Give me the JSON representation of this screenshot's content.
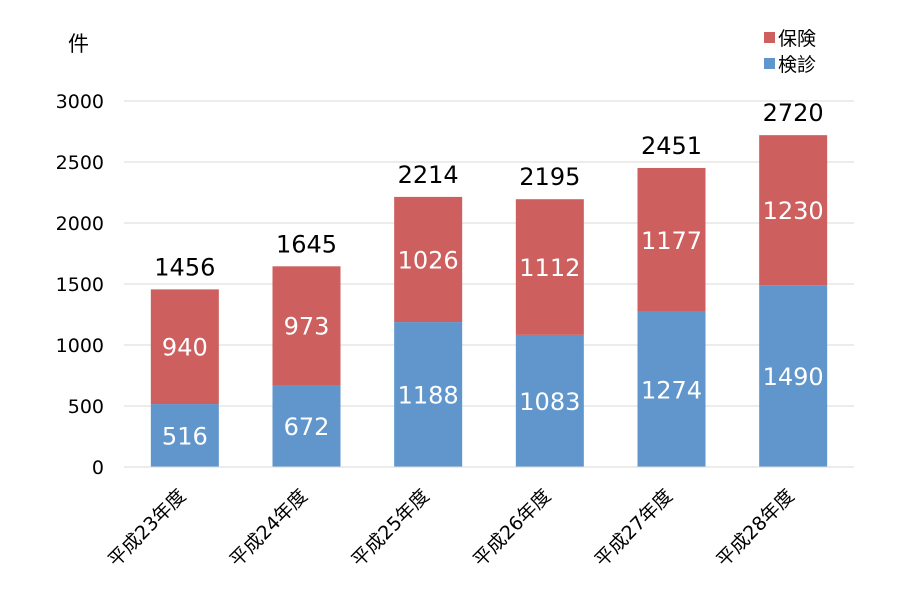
{
  "chart_data": {
    "type": "bar",
    "stacked": true,
    "unit_label": "件",
    "categories": [
      "平成23年度",
      "平成24年度",
      "平成25年度",
      "平成26年度",
      "平成27年度",
      "平成28年度"
    ],
    "series": [
      {
        "name": "検診",
        "color": "#6096cc",
        "values": [
          516,
          672,
          1188,
          1083,
          1274,
          1490
        ]
      },
      {
        "name": "保険",
        "color": "#cd5f5e",
        "values": [
          940,
          973,
          1026,
          1112,
          1177,
          1230
        ]
      }
    ],
    "totals": [
      1456,
      1645,
      2214,
      2195,
      2451,
      2720
    ],
    "ylim": [
      0,
      3000
    ],
    "yticks": [
      0,
      500,
      1000,
      1500,
      2000,
      2500,
      3000
    ],
    "grid": true,
    "legend_position": "top-right",
    "gridline_color": "#d9d9d9"
  }
}
